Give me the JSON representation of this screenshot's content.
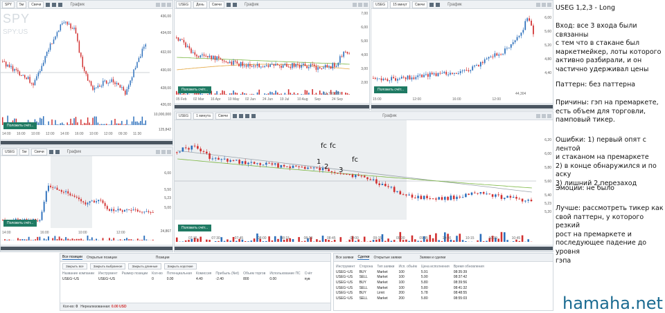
{
  "panels": {
    "spy": {
      "symbol": "SPY",
      "interval": "5м",
      "style": "Свечи",
      "title": "График",
      "bg_ticker": "SPY",
      "bg_sub": "SPY:US",
      "axis": [
        "436,00",
        "434,00",
        "432,00",
        "430,00",
        "428,00",
        "426,00"
      ],
      "price_label": "434,12",
      "vol_axis": [
        "10,000,000",
        "125,842"
      ],
      "x_labels": [
        "14:00",
        "16:00",
        "10:00",
        "12:00",
        "14:00",
        "16:00",
        "10:00",
        "12:00",
        "09:30",
        "11:30"
      ],
      "place_btn": "Положить счёт..."
    },
    "useg_day": {
      "symbol": "USEG",
      "interval": "День",
      "style": "Свечи",
      "title": "График",
      "axis": [
        "7,00",
        "6,00",
        "5,00",
        "4,00",
        "3,00",
        "2,00"
      ],
      "price_labels": [
        "5,23",
        "4,00",
        "3,00"
      ],
      "vol_label": "12,730,959",
      "x_labels": [
        "05 Feb",
        "02 Mar",
        "16 Apr",
        "10 May",
        "02 Jun",
        "24 Jun",
        "19 Jul",
        "10 Aug",
        "Sep",
        "24 Sep"
      ],
      "place_btn": "Положить счёт..."
    },
    "useg_15": {
      "symbol": "USEG",
      "interval": "15 минут",
      "style": "Свечи",
      "title": "График",
      "axis": [
        "6,00",
        "5,60",
        "5,20",
        "4,80",
        "4,40"
      ],
      "price_label": "5,23",
      "vol_label": "44,304",
      "x_labels": [
        "15:00",
        "12:00",
        "16:00",
        "12:00"
      ],
      "place_btn": "Положить счёт..."
    },
    "useg_5": {
      "symbol": "USEG",
      "interval": "5м",
      "style": "Свечи",
      "title": "График",
      "axis": [
        "6,00",
        "5,50",
        "5,23",
        "5,00"
      ],
      "vol_label": "24,867",
      "x_labels": [
        "14:00",
        "16:00",
        "10:00",
        "12:00"
      ],
      "place_btn": "Положить счёт..."
    },
    "useg_1": {
      "symbol": "USEG",
      "interval": "1 минута",
      "style": "Свечи",
      "title": "График",
      "axis": [
        "6,20",
        "6,00",
        "5,80",
        "5,60",
        "5,40",
        "5,23",
        "5,20"
      ],
      "price_label": "5,23",
      "x_labels": [
        "07:15",
        "07:30",
        "07:45",
        "08:00",
        "08:15",
        "08:30",
        "08:45",
        "09:00",
        "09:15",
        "09:30",
        "09:45",
        "10:00",
        "10:15",
        "10:30",
        "10:45"
      ],
      "place_btn": "Положить счёт...",
      "marks": [
        "fc",
        "fc",
        "fc",
        "1",
        "2",
        "3"
      ]
    }
  },
  "positions": {
    "tab_all": "Все позиции",
    "tab_open": "Открытые позиции",
    "title": "Позиции",
    "actions": [
      "Закрыть все",
      "Закрыть выбранное",
      "Закрыть длинные",
      "Закрыть короткие"
    ],
    "headers": [
      "Название компании",
      "Инструмент",
      "Размер позиции",
      "Кол-во",
      "Потенциальная",
      "Комиссия",
      "Прибыль (Net)",
      "Объем торгов",
      "Использование ПС",
      "Счёт"
    ],
    "rows": [
      [
        "USEG~US",
        "USEG~US",
        "",
        "0",
        "0.00",
        "4.40",
        "-2.40",
        "800",
        "0.00",
        "nyв"
      ]
    ],
    "footer_left": "Кол-во:",
    "footer_val": "0",
    "footer_mid": "Нереализованная:",
    "footer_usd": "0.00 USD"
  },
  "orders": {
    "tab_all": "Все заявки",
    "tab_trades": "Сделки",
    "tab_open": "Открытые заявки",
    "title": "Заявки и сделки",
    "headers": [
      "Инструмент",
      "Сторона",
      "Тип заявки",
      "Исп. объём",
      "Цена исполнения",
      "Время обновления"
    ],
    "rows": [
      [
        "USEG~US",
        "BUY",
        "Market",
        "100",
        "5.91",
        "08:35:39"
      ],
      [
        "USEG~US",
        "SELL",
        "Market",
        "100",
        "5.90",
        "08:37:42"
      ],
      [
        "USEG~US",
        "BUY",
        "Market",
        "100",
        "5.80",
        "08:39:56"
      ],
      [
        "USEG~US",
        "SELL",
        "Market",
        "100",
        "5.80",
        "08:41:32"
      ],
      [
        "USEG~US",
        "BUY",
        "Limit",
        "200",
        "5.78",
        "08:48:55"
      ],
      [
        "USEG~US",
        "SELL",
        "Market",
        "200",
        "5.80",
        "08:55:03"
      ]
    ]
  },
  "notes": {
    "title": "USEG 1,2,3 - Long",
    "entry": "Вход: все 3 входа были связанны\nс тем что в стакане был\nмаркетмейкер, лоты которого\nактивно разбирали, и он\nчастично удерживал цены",
    "pattern": "Паттерн: без паттерна",
    "reasons": "Причины: гэп на премаркете,\nесть объем для торговли,\nпамповый тикер.",
    "errors": "Ошибки: 1) первый опят с лентой\nи стаканом на премаркете\n2) в конце обнаружился и по аску\n3) лишний 2  перезаход",
    "emotions": "Эмоции: не было",
    "better": "Лучше: рассмотреть тикер как\nсвой паттерн,  у которого резкий\nрост на премаркете и\nпоследующее падение до уровня\nгэпа"
  },
  "brand": "hamaha.net",
  "colors": {
    "up": "#2a6ebb",
    "down": "#d12f2f",
    "accent": "#1f7a63",
    "sma_green": "#7ab640",
    "sma_orange": "#e3a33a"
  }
}
